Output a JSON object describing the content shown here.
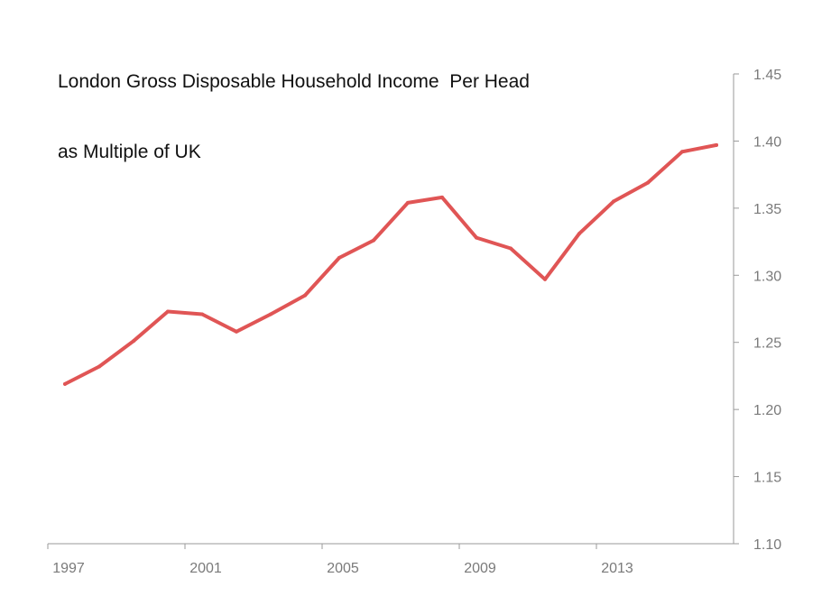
{
  "chart_data": {
    "type": "line",
    "title_line1": "London Gross Disposable Household Income  Per Head",
    "title_line2": "as Multiple of UK",
    "xlabel": "",
    "ylabel": "",
    "x_tick_labels": [
      "1997",
      "2001",
      "2005",
      "2009",
      "2013"
    ],
    "y_tick_labels": [
      "1.45",
      "1.40",
      "1.35",
      "1.30",
      "1.25",
      "1.20",
      "1.15",
      "1.10"
    ],
    "ylim": [
      1.1,
      1.45
    ],
    "xlim": [
      1997,
      2017
    ],
    "grid": false,
    "y_axis_side": "right",
    "line_color": "#e05555",
    "axis_color": "#9a9a9a",
    "series": [
      {
        "x": [
          1997.5,
          1998.5,
          1999.5,
          2000.5,
          2001.5,
          2002.5,
          2003.5,
          2004.5,
          2005.5,
          2006.5,
          2007.5,
          2008.5,
          2009.5,
          2010.5,
          2011.5,
          2012.5,
          2013.5,
          2014.5,
          2015.5,
          2016.5
        ],
        "values": [
          1.219,
          1.232,
          1.251,
          1.273,
          1.271,
          1.258,
          1.271,
          1.285,
          1.313,
          1.326,
          1.354,
          1.358,
          1.328,
          1.32,
          1.297,
          1.331,
          1.355,
          1.369,
          1.392,
          1.397
        ]
      }
    ]
  }
}
